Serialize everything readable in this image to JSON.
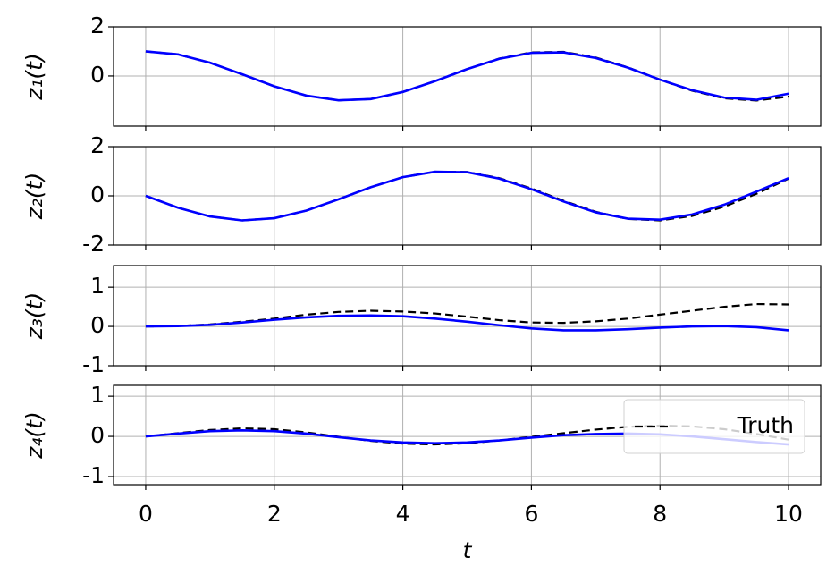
{
  "chart_data": [
    {
      "type": "line",
      "ylabel": "z₁(t)",
      "xlim": [
        -0.5,
        10.5
      ],
      "xticks": [
        0,
        2,
        4,
        6,
        8,
        10
      ],
      "ylim": [
        -2.04,
        2
      ],
      "yticks": [
        2,
        0
      ],
      "grid": true,
      "x": [
        0,
        0.5,
        1,
        1.5,
        2,
        2.5,
        3,
        3.5,
        4,
        4.5,
        5,
        5.5,
        6,
        6.5,
        7,
        7.5,
        8,
        8.5,
        9,
        9.5,
        10
      ],
      "series": [
        {
          "name": "Truth",
          "color": "#000000",
          "linestyle": "dashed",
          "values": [
            1,
            0.88,
            0.54,
            0.07,
            -0.42,
            -0.8,
            -0.99,
            -0.94,
            -0.65,
            -0.21,
            0.28,
            0.71,
            0.96,
            0.98,
            0.75,
            0.35,
            -0.15,
            -0.6,
            -0.91,
            -1.0,
            -0.84
          ]
        },
        {
          "color": "#0000ff",
          "linestyle": "solid",
          "values": [
            1,
            0.88,
            0.54,
            0.07,
            -0.42,
            -0.8,
            -0.99,
            -0.94,
            -0.65,
            -0.21,
            0.28,
            0.7,
            0.94,
            0.96,
            0.73,
            0.34,
            -0.15,
            -0.58,
            -0.88,
            -0.97,
            -0.72
          ]
        }
      ]
    },
    {
      "type": "line",
      "ylabel": "z₂(t)",
      "xlim": [
        -0.5,
        10.5
      ],
      "xticks": [
        0,
        2,
        4,
        6,
        8,
        10
      ],
      "ylim": [
        -2,
        2
      ],
      "yticks": [
        2,
        0,
        -2
      ],
      "grid": true,
      "x": [
        0,
        0.5,
        1,
        1.5,
        2,
        2.5,
        3,
        3.5,
        4,
        4.5,
        5,
        5.5,
        6,
        6.5,
        7,
        7.5,
        8,
        8.5,
        9,
        9.5,
        10
      ],
      "series": [
        {
          "name": "Truth",
          "color": "#000000",
          "linestyle": "dashed",
          "values": [
            0,
            -0.48,
            -0.84,
            -1.0,
            -0.91,
            -0.6,
            -0.14,
            0.35,
            0.76,
            0.98,
            0.97,
            0.72,
            0.3,
            -0.2,
            -0.65,
            -0.94,
            -1.0,
            -0.82,
            -0.44,
            0.08,
            0.7
          ]
        },
        {
          "color": "#0000ff",
          "linestyle": "solid",
          "values": [
            0,
            -0.48,
            -0.84,
            -1.0,
            -0.91,
            -0.6,
            -0.14,
            0.35,
            0.76,
            0.98,
            0.96,
            0.7,
            0.27,
            -0.23,
            -0.67,
            -0.93,
            -0.97,
            -0.76,
            -0.36,
            0.17,
            0.72
          ]
        }
      ]
    },
    {
      "type": "line",
      "ylabel": "z₃(t)",
      "xlim": [
        -0.5,
        10.5
      ],
      "xticks": [
        0,
        2,
        4,
        6,
        8,
        10
      ],
      "ylim": [
        -1,
        1.55
      ],
      "yticks": [
        1,
        0,
        -1
      ],
      "grid": true,
      "x": [
        0,
        0.5,
        1,
        1.5,
        2,
        2.5,
        3,
        3.5,
        4,
        4.5,
        5,
        5.5,
        6,
        6.5,
        7,
        7.5,
        8,
        8.5,
        9,
        9.5,
        10
      ],
      "series": [
        {
          "name": "Truth",
          "color": "#000000",
          "linestyle": "dashed",
          "values": [
            0,
            0.01,
            0.05,
            0.12,
            0.2,
            0.3,
            0.37,
            0.4,
            0.38,
            0.33,
            0.25,
            0.16,
            0.1,
            0.09,
            0.13,
            0.2,
            0.3,
            0.4,
            0.5,
            0.57,
            0.56
          ]
        },
        {
          "color": "#0000ff",
          "linestyle": "solid",
          "values": [
            0,
            0.01,
            0.04,
            0.1,
            0.17,
            0.23,
            0.27,
            0.28,
            0.26,
            0.2,
            0.12,
            0.03,
            -0.05,
            -0.1,
            -0.1,
            -0.07,
            -0.03,
            0,
            0.01,
            -0.02,
            -0.1
          ]
        }
      ]
    },
    {
      "type": "line",
      "ylabel": "z₄(t)",
      "xlabel": "t",
      "xlim": [
        -0.5,
        10.5
      ],
      "xticks": [
        0,
        2,
        4,
        6,
        8,
        10
      ],
      "ylim": [
        -1.2,
        1.27
      ],
      "yticks": [
        1,
        0,
        -1
      ],
      "grid": true,
      "legend": "upper right",
      "x": [
        0,
        0.5,
        1,
        1.5,
        2,
        2.5,
        3,
        3.5,
        4,
        4.5,
        5,
        5.5,
        6,
        6.5,
        7,
        7.5,
        8,
        8.5,
        9,
        9.5,
        10
      ],
      "series": [
        {
          "name": "Truth",
          "color": "#000000",
          "linestyle": "dashed",
          "values": [
            0,
            0.08,
            0.16,
            0.2,
            0.18,
            0.1,
            -0.01,
            -0.11,
            -0.18,
            -0.2,
            -0.17,
            -0.1,
            -0.01,
            0.08,
            0.17,
            0.24,
            0.27,
            0.25,
            0.18,
            0.06,
            -0.08
          ]
        },
        {
          "color": "#0000ff",
          "linestyle": "solid",
          "values": [
            0,
            0.07,
            0.13,
            0.15,
            0.13,
            0.07,
            -0.02,
            -0.1,
            -0.15,
            -0.17,
            -0.15,
            -0.1,
            -0.03,
            0.03,
            0.06,
            0.07,
            0.05,
            0,
            -0.07,
            -0.14,
            -0.2
          ]
        }
      ]
    }
  ]
}
